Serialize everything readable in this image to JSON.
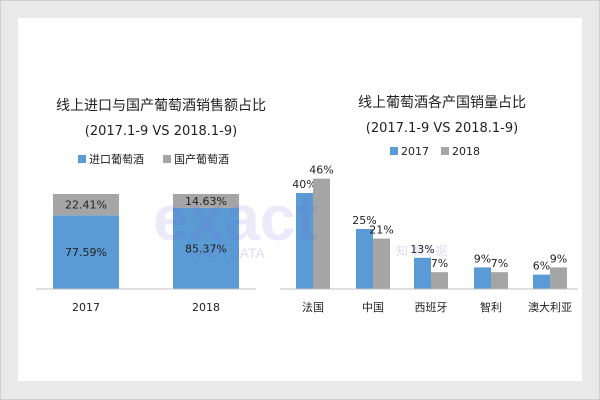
{
  "watermark": {
    "logo_text": "exact",
    "tagline": "ACT DATA",
    "tagline_cn": "知 数 | 据"
  },
  "colors": {
    "blue": "#5b9bd5",
    "gray": "#a5a5a5",
    "background": "#e9e9e9",
    "panel": "#ffffff",
    "text": "#222222"
  },
  "chart_data": [
    {
      "type": "bar",
      "stacked": true,
      "percent": true,
      "title": "线上进口与国产葡萄酒销售额占比",
      "subtitle": "(2017.1-9 VS 2018.1-9)",
      "categories": [
        "2017",
        "2018"
      ],
      "series": [
        {
          "name": "进口葡萄酒",
          "values": [
            77.59,
            85.37
          ],
          "labels": [
            "77.59%",
            "85.37%"
          ],
          "color": "#5b9bd5"
        },
        {
          "name": "国产葡萄酒",
          "values": [
            22.41,
            14.63
          ],
          "labels": [
            "22.41%",
            "14.63%"
          ],
          "color": "#a5a5a5"
        }
      ],
      "ylim": [
        0,
        100
      ],
      "legend": "top",
      "grid": false
    },
    {
      "type": "bar",
      "title": "线上葡萄酒各产国销量占比",
      "subtitle": "(2017.1-9 VS 2018.1-9)",
      "categories": [
        "法国",
        "中国",
        "西班牙",
        "智利",
        "澳大利亚"
      ],
      "series": [
        {
          "name": "2017",
          "values": [
            40,
            25,
            13,
            9,
            6
          ],
          "labels": [
            "40%",
            "25%",
            "13%",
            "9%",
            "6%"
          ],
          "color": "#5b9bd5"
        },
        {
          "name": "2018",
          "values": [
            46,
            21,
            7,
            7,
            9
          ],
          "labels": [
            "46%",
            "21%",
            "7%",
            "7%",
            "9%"
          ],
          "color": "#a5a5a5"
        }
      ],
      "ylim": [
        0,
        50
      ],
      "legend": "top",
      "grid": false
    }
  ]
}
